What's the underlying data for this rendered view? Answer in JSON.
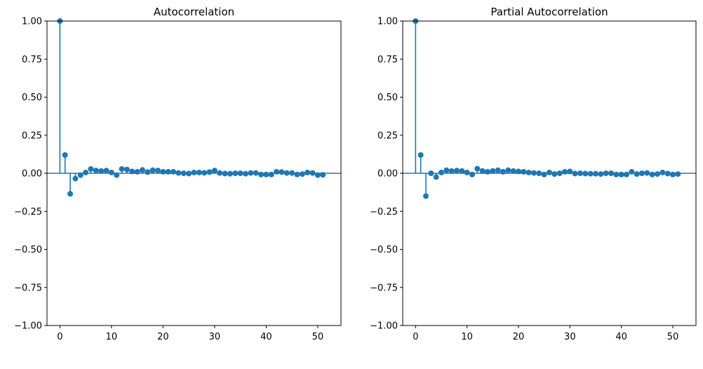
{
  "colors": {
    "series": "#1f77b4",
    "axis": "#000000",
    "background": "#ffffff"
  },
  "chart_data": [
    {
      "type": "stem",
      "title": "Autocorrelation",
      "xlabel": "",
      "ylabel": "",
      "xlim": [
        -2.5,
        54.5
      ],
      "ylim": [
        -1.0,
        1.0
      ],
      "xticks": [
        0,
        10,
        20,
        30,
        40,
        50
      ],
      "yticks": [
        -1.0,
        -0.75,
        -0.5,
        -0.25,
        0.0,
        0.25,
        0.5,
        0.75,
        1.0
      ],
      "ytick_labels": [
        "−1.00",
        "−0.75",
        "−0.50",
        "−0.25",
        "0.00",
        "0.25",
        "0.50",
        "0.75",
        "1.00"
      ],
      "grid": false,
      "zero_line": true,
      "x": [
        0,
        1,
        2,
        3,
        4,
        5,
        6,
        7,
        8,
        9,
        10,
        11,
        12,
        13,
        14,
        15,
        16,
        17,
        18,
        19,
        20,
        21,
        22,
        23,
        24,
        25,
        26,
        27,
        28,
        29,
        30,
        31,
        32,
        33,
        34,
        35,
        36,
        37,
        38,
        39,
        40,
        41,
        42,
        43,
        44,
        45,
        46,
        47,
        48,
        49,
        50,
        51
      ],
      "values": [
        1.0,
        0.12,
        -0.135,
        -0.035,
        -0.012,
        0.005,
        0.028,
        0.018,
        0.015,
        0.018,
        0.005,
        -0.012,
        0.028,
        0.025,
        0.012,
        0.01,
        0.022,
        0.008,
        0.02,
        0.018,
        0.01,
        0.01,
        0.01,
        0.002,
        0.0,
        -0.002,
        0.005,
        0.005,
        0.003,
        0.008,
        0.018,
        0.002,
        -0.002,
        -0.003,
        0.0,
        0.0,
        -0.003,
        0.002,
        0.002,
        -0.008,
        -0.008,
        -0.008,
        0.01,
        0.008,
        0.002,
        0.002,
        -0.008,
        -0.005,
        0.005,
        0.002,
        -0.012,
        -0.01
      ]
    },
    {
      "type": "stem",
      "title": "Partial Autocorrelation",
      "xlabel": "",
      "ylabel": "",
      "xlim": [
        -2.5,
        54.5
      ],
      "ylim": [
        -1.0,
        1.0
      ],
      "xticks": [
        0,
        10,
        20,
        30,
        40,
        50
      ],
      "yticks": [
        -1.0,
        -0.75,
        -0.5,
        -0.25,
        0.0,
        0.25,
        0.5,
        0.75,
        1.0
      ],
      "ytick_labels": [
        "−1.00",
        "−0.75",
        "−0.50",
        "−0.25",
        "0.00",
        "0.25",
        "0.50",
        "0.75",
        "1.00"
      ],
      "grid": false,
      "zero_line": true,
      "x": [
        0,
        1,
        2,
        3,
        4,
        5,
        6,
        7,
        8,
        9,
        10,
        11,
        12,
        13,
        14,
        15,
        16,
        17,
        18,
        19,
        20,
        21,
        22,
        23,
        24,
        25,
        26,
        27,
        28,
        29,
        30,
        31,
        32,
        33,
        34,
        35,
        36,
        37,
        38,
        39,
        40,
        41,
        42,
        43,
        44,
        45,
        46,
        47,
        48,
        49,
        50,
        51
      ],
      "values": [
        1.0,
        0.12,
        -0.15,
        0.0,
        -0.025,
        0.005,
        0.02,
        0.015,
        0.018,
        0.015,
        0.005,
        -0.008,
        0.03,
        0.015,
        0.01,
        0.015,
        0.02,
        0.01,
        0.02,
        0.015,
        0.012,
        0.01,
        0.005,
        0.002,
        0.0,
        -0.008,
        0.005,
        -0.005,
        0.0,
        0.01,
        0.012,
        -0.002,
        0.0,
        -0.002,
        -0.003,
        -0.003,
        -0.005,
        0.0,
        0.0,
        -0.008,
        -0.008,
        -0.008,
        0.01,
        -0.005,
        0.0,
        0.002,
        -0.008,
        -0.005,
        0.005,
        -0.002,
        -0.008,
        -0.005
      ]
    }
  ]
}
